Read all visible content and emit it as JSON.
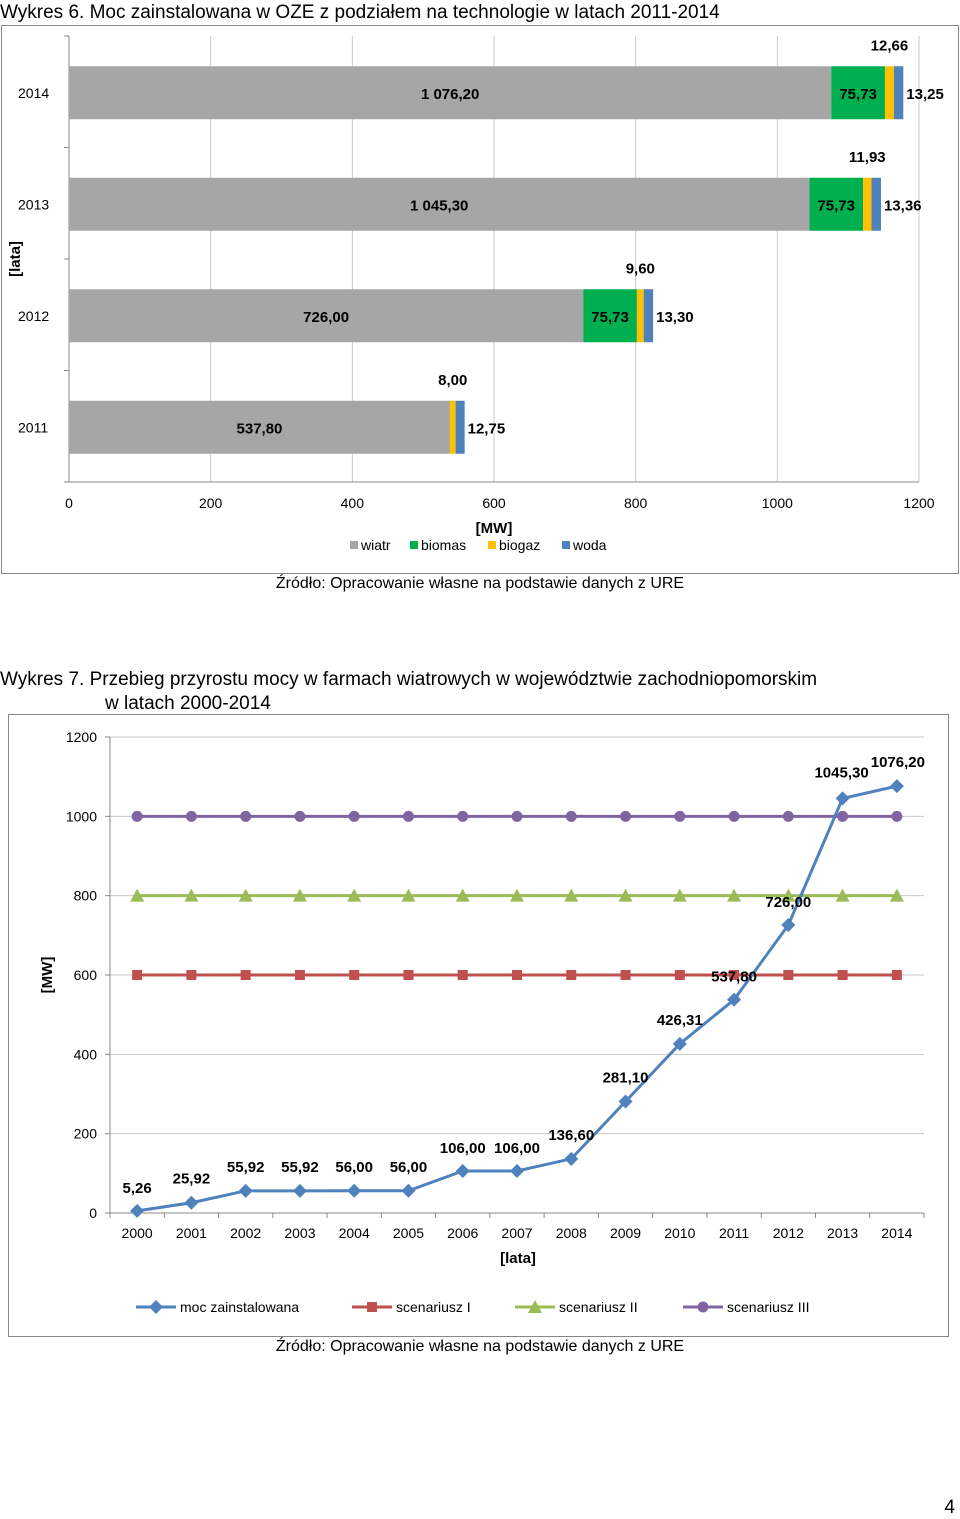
{
  "captions": {
    "chart1": "Wykres 6. Moc zainstalowana w OZE z podziałem na technologie w latach 2011-2014",
    "chart2_line1": "Wykres 7. Przebieg przyrostu mocy w farmach wiatrowych w województwie zachodniopomorskim",
    "chart2_line2": "w latach 2000-2014"
  },
  "sources": {
    "chart1": "Źródło: Opracowanie własne na podstawie danych z URE",
    "chart2": "Źródło: Opracowanie własne na podstawie danych z URE"
  },
  "page_number": "4",
  "chart_data": [
    {
      "type": "bar",
      "orientation": "horizontal",
      "stacked": true,
      "categories": [
        "2011",
        "2012",
        "2013",
        "2014"
      ],
      "series": [
        {
          "name": "wiatr",
          "color": "#a6a6a6",
          "values": [
            537.8,
            726.0,
            1045.3,
            1076.2
          ],
          "labels": [
            "537,80",
            "726,00",
            "1 045,30",
            "1 076,20"
          ]
        },
        {
          "name": "biomas",
          "color": "#00b050",
          "values": [
            0,
            75.73,
            75.73,
            75.73
          ],
          "labels": [
            "",
            "75,73",
            "75,73",
            "75,73"
          ]
        },
        {
          "name": "biogaz",
          "color": "#ffc000",
          "values": [
            8.0,
            9.6,
            11.93,
            12.66
          ],
          "labels": [
            "8,00",
            "9,60",
            "11,93",
            "12,66"
          ]
        },
        {
          "name": "woda",
          "color": "#4f81bd",
          "values": [
            12.75,
            13.3,
            13.36,
            13.25
          ],
          "labels": [
            "12,75",
            "13,30",
            "13,36",
            "13,25"
          ]
        }
      ],
      "xlabel": "[MW]",
      "ylabel": "[lata]",
      "xlim": [
        0,
        1200
      ],
      "xticks": [
        "0",
        "200",
        "400",
        "600",
        "800",
        "1000",
        "1200"
      ],
      "grid": "vertical",
      "legend": "bottom"
    },
    {
      "type": "line",
      "x": [
        "2000",
        "2001",
        "2002",
        "2003",
        "2004",
        "2005",
        "2006",
        "2007",
        "2008",
        "2009",
        "2010",
        "2011",
        "2012",
        "2013",
        "2014"
      ],
      "series": [
        {
          "name": "moc zainstalowana",
          "color": "#4f81bd",
          "marker": "diamond",
          "values": [
            5.26,
            25.92,
            55.92,
            55.92,
            56.0,
            56.0,
            106.0,
            106.0,
            136.6,
            281.1,
            426.31,
            537.8,
            726.0,
            1045.3,
            1076.2
          ],
          "labels": [
            "5,26",
            "25,92",
            "55,92",
            "55,92",
            "56,00",
            "56,00",
            "106,00",
            "106,00",
            "136,60",
            "281,10",
            "426,31",
            "537,80",
            "726,00",
            "1045,30",
            "1076,20"
          ]
        },
        {
          "name": "scenariusz I",
          "color": "#c0504d",
          "marker": "square",
          "values": [
            600,
            600,
            600,
            600,
            600,
            600,
            600,
            600,
            600,
            600,
            600,
            600,
            600,
            600,
            600
          ]
        },
        {
          "name": "scenariusz II",
          "color": "#9bbb59",
          "marker": "triangle",
          "values": [
            800,
            800,
            800,
            800,
            800,
            800,
            800,
            800,
            800,
            800,
            800,
            800,
            800,
            800,
            800
          ]
        },
        {
          "name": "scenariusz III",
          "color": "#8064a2",
          "marker": "circle",
          "values": [
            1000,
            1000,
            1000,
            1000,
            1000,
            1000,
            1000,
            1000,
            1000,
            1000,
            1000,
            1000,
            1000,
            1000,
            1000
          ]
        }
      ],
      "xlabel": "[lata]",
      "ylabel": "[MW]",
      "ylim": [
        0,
        1200
      ],
      "yticks": [
        "0",
        "200",
        "400",
        "600",
        "800",
        "1000",
        "1200"
      ],
      "grid": "horizontal",
      "legend": "bottom"
    }
  ]
}
